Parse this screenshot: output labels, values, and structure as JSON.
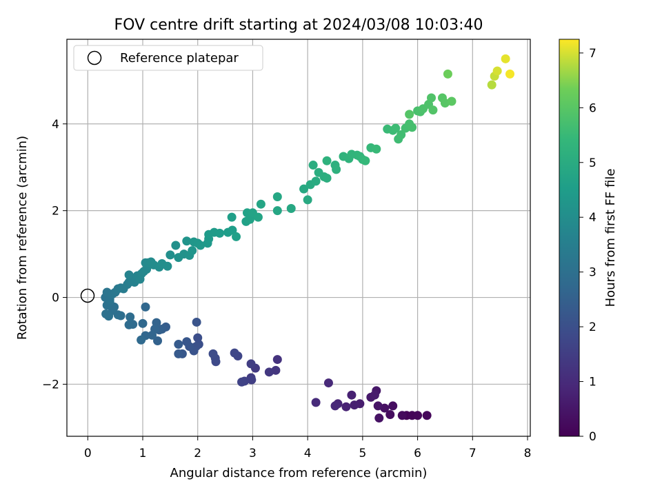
{
  "chart_data": {
    "type": "scatter",
    "title": "FOV centre drift starting at 2024/03/08 10:03:40",
    "xlabel": "Angular distance from reference (arcmin)",
    "ylabel": "Rotation from reference (arcmin)",
    "xlim": [
      -0.38,
      8.05
    ],
    "ylim": [
      -3.2,
      5.95
    ],
    "xticks": [
      0,
      1,
      2,
      3,
      4,
      5,
      6,
      7,
      8
    ],
    "xtick_labels": [
      "0",
      "1",
      "2",
      "3",
      "4",
      "5",
      "6",
      "7",
      "8"
    ],
    "yticks": [
      -2,
      0,
      2,
      4
    ],
    "ytick_labels": [
      "−2",
      "0",
      "2",
      "4"
    ],
    "grid": true,
    "legend": {
      "position": "top-left",
      "entries": [
        "Reference platepar"
      ]
    },
    "colorbar": {
      "label": "Hours from first FF file",
      "range": [
        0,
        7.25
      ],
      "ticks": [
        0,
        1,
        2,
        3,
        4,
        5,
        6,
        7
      ],
      "tick_labels": [
        "0",
        "1",
        "2",
        "3",
        "4",
        "5",
        "6",
        "7"
      ],
      "colormap": "viridis"
    },
    "reference_point": {
      "x": 0,
      "y": 0,
      "name": "Reference platepar"
    },
    "points": [
      [
        5.8,
        -2.72,
        0.05
      ],
      [
        5.9,
        -2.72,
        0.1
      ],
      [
        6.0,
        -2.72,
        0.12
      ],
      [
        6.17,
        -2.72,
        0.15
      ],
      [
        5.72,
        -2.72,
        0.2
      ],
      [
        5.5,
        -2.7,
        0.25
      ],
      [
        5.55,
        -2.5,
        0.3
      ],
      [
        5.4,
        -2.55,
        0.35
      ],
      [
        5.3,
        -2.78,
        0.4
      ],
      [
        5.28,
        -2.5,
        0.45
      ],
      [
        5.25,
        -2.15,
        0.5
      ],
      [
        5.15,
        -2.3,
        0.55
      ],
      [
        5.22,
        -2.25,
        0.6
      ],
      [
        4.95,
        -2.45,
        0.65
      ],
      [
        4.85,
        -2.48,
        0.7
      ],
      [
        4.8,
        -2.25,
        0.75
      ],
      [
        4.7,
        -2.52,
        0.8
      ],
      [
        4.55,
        -2.45,
        0.85
      ],
      [
        4.5,
        -2.5,
        0.9
      ],
      [
        4.38,
        -1.97,
        0.95
      ],
      [
        4.15,
        -2.42,
        1.0
      ],
      [
        3.45,
        -1.43,
        1.2
      ],
      [
        3.42,
        -1.68,
        1.3
      ],
      [
        3.3,
        -1.72,
        1.35
      ],
      [
        3.05,
        -1.63,
        1.4
      ],
      [
        2.97,
        -1.85,
        1.45
      ],
      [
        2.97,
        -1.53,
        1.5
      ],
      [
        2.98,
        -1.9,
        1.55
      ],
      [
        2.85,
        -1.93,
        1.6
      ],
      [
        2.8,
        -1.95,
        1.65
      ],
      [
        2.73,
        -1.35,
        1.7
      ],
      [
        2.67,
        -1.28,
        1.75
      ],
      [
        2.33,
        -1.48,
        1.8
      ],
      [
        2.32,
        -1.4,
        1.85
      ],
      [
        2.28,
        -1.3,
        1.9
      ],
      [
        2.0,
        -0.93,
        1.95
      ],
      [
        2.02,
        -1.08,
        2.0
      ],
      [
        1.97,
        -1.13,
        2.05
      ],
      [
        1.93,
        -1.23,
        2.1
      ],
      [
        1.98,
        -0.57,
        2.12
      ],
      [
        1.85,
        -1.13,
        2.15
      ],
      [
        1.8,
        -1.02,
        2.2
      ],
      [
        1.72,
        -1.3,
        2.25
      ],
      [
        1.65,
        -1.3,
        2.3
      ],
      [
        1.65,
        -1.08,
        2.35
      ],
      [
        1.42,
        -0.68,
        2.4
      ],
      [
        1.35,
        -0.73,
        2.45
      ],
      [
        1.3,
        -0.75,
        2.5
      ],
      [
        1.27,
        -1.0,
        2.55
      ],
      [
        1.25,
        -0.58,
        2.6
      ],
      [
        1.22,
        -0.73,
        2.63
      ],
      [
        1.17,
        -0.87,
        2.66
      ],
      [
        1.05,
        -0.88,
        2.7
      ],
      [
        1.05,
        -0.22,
        2.73
      ],
      [
        1.0,
        -0.6,
        2.76
      ],
      [
        0.97,
        -0.98,
        2.8
      ],
      [
        0.82,
        -0.62,
        2.83
      ],
      [
        0.75,
        -0.63,
        2.86
      ],
      [
        0.77,
        -0.45,
        2.89
      ],
      [
        0.6,
        -0.42,
        2.92
      ],
      [
        0.55,
        -0.4,
        2.95
      ],
      [
        0.45,
        -0.3,
        2.98
      ],
      [
        0.48,
        -0.22,
        3.0
      ],
      [
        0.38,
        -0.43,
        3.02
      ],
      [
        0.33,
        -0.38,
        3.04
      ],
      [
        0.35,
        -0.18,
        3.06
      ],
      [
        0.4,
        -0.1,
        3.08
      ],
      [
        0.32,
        0.0,
        3.1
      ],
      [
        0.4,
        -0.05,
        3.12
      ],
      [
        0.42,
        0.05,
        3.14
      ],
      [
        0.35,
        0.12,
        3.16
      ],
      [
        0.45,
        0.08,
        3.2
      ],
      [
        0.5,
        0.12,
        3.25
      ],
      [
        0.55,
        0.2,
        3.3
      ],
      [
        0.6,
        0.22,
        3.35
      ],
      [
        0.65,
        0.2,
        3.4
      ],
      [
        0.72,
        0.3,
        3.45
      ],
      [
        0.75,
        0.35,
        3.5
      ],
      [
        0.8,
        0.4,
        3.55
      ],
      [
        0.85,
        0.35,
        3.6
      ],
      [
        0.88,
        0.45,
        3.63
      ],
      [
        0.75,
        0.52,
        3.66
      ],
      [
        0.9,
        0.5,
        3.7
      ],
      [
        0.95,
        0.42,
        3.73
      ],
      [
        0.98,
        0.55,
        3.76
      ],
      [
        1.02,
        0.6,
        3.8
      ],
      [
        1.07,
        0.65,
        3.83
      ],
      [
        1.05,
        0.8,
        3.86
      ],
      [
        1.1,
        0.8,
        3.89
      ],
      [
        1.15,
        0.82,
        3.92
      ],
      [
        1.2,
        0.75,
        3.95
      ],
      [
        1.3,
        0.7,
        3.98
      ],
      [
        1.35,
        0.78,
        4.0
      ],
      [
        1.45,
        0.72,
        4.03
      ],
      [
        1.5,
        0.98,
        4.06
      ],
      [
        1.6,
        1.2,
        4.09
      ],
      [
        1.65,
        0.92,
        4.12
      ],
      [
        1.75,
        1.0,
        4.15
      ],
      [
        1.85,
        0.97,
        4.18
      ],
      [
        1.8,
        1.3,
        4.21
      ],
      [
        1.9,
        1.08,
        4.24
      ],
      [
        1.93,
        1.28,
        4.27
      ],
      [
        2.0,
        1.25,
        4.3
      ],
      [
        2.05,
        1.2,
        4.33
      ],
      [
        2.18,
        1.25,
        4.36
      ],
      [
        2.2,
        1.35,
        4.39
      ],
      [
        2.2,
        1.45,
        4.42
      ],
      [
        2.3,
        1.5,
        4.45
      ],
      [
        2.4,
        1.48,
        4.48
      ],
      [
        2.55,
        1.5,
        4.51
      ],
      [
        2.63,
        1.55,
        4.54
      ],
      [
        2.62,
        1.85,
        4.57
      ],
      [
        2.7,
        1.4,
        4.6
      ],
      [
        2.88,
        1.75,
        4.63
      ],
      [
        2.9,
        1.95,
        4.66
      ],
      [
        2.95,
        1.8,
        4.69
      ],
      [
        3.0,
        1.95,
        4.72
      ],
      [
        3.1,
        1.85,
        4.75
      ],
      [
        3.15,
        2.15,
        4.78
      ],
      [
        3.45,
        2.0,
        4.81
      ],
      [
        3.45,
        2.32,
        4.84
      ],
      [
        3.7,
        2.05,
        4.87
      ],
      [
        3.93,
        2.5,
        4.9
      ],
      [
        4.0,
        2.25,
        4.93
      ],
      [
        4.05,
        2.6,
        4.96
      ],
      [
        4.15,
        2.68,
        5.0
      ],
      [
        4.1,
        3.05,
        5.03
      ],
      [
        4.2,
        2.88,
        5.06
      ],
      [
        4.3,
        2.78,
        5.09
      ],
      [
        4.35,
        2.75,
        5.12
      ],
      [
        4.5,
        3.05,
        5.15
      ],
      [
        4.52,
        2.95,
        5.18
      ],
      [
        4.35,
        3.15,
        5.21
      ],
      [
        4.65,
        3.25,
        5.24
      ],
      [
        4.75,
        3.2,
        5.27
      ],
      [
        4.8,
        3.3,
        5.3
      ],
      [
        4.9,
        3.28,
        5.33
      ],
      [
        4.95,
        3.25,
        5.36
      ],
      [
        5.0,
        3.18,
        5.39
      ],
      [
        5.05,
        3.15,
        5.42
      ],
      [
        5.15,
        3.45,
        5.45
      ],
      [
        5.25,
        3.42,
        5.48
      ],
      [
        5.45,
        3.88,
        5.51
      ],
      [
        5.55,
        3.85,
        5.55
      ],
      [
        5.6,
        3.9,
        5.58
      ],
      [
        5.65,
        3.65,
        5.61
      ],
      [
        5.7,
        3.75,
        5.64
      ],
      [
        5.78,
        3.9,
        5.67
      ],
      [
        5.85,
        4.0,
        5.7
      ],
      [
        5.9,
        3.92,
        5.73
      ],
      [
        6.0,
        4.3,
        5.76
      ],
      [
        6.05,
        4.28,
        5.79
      ],
      [
        6.1,
        4.35,
        5.82
      ],
      [
        6.2,
        4.45,
        5.85
      ],
      [
        6.25,
        4.6,
        5.88
      ],
      [
        6.28,
        4.32,
        5.91
      ],
      [
        5.85,
        4.22,
        5.94
      ],
      [
        6.45,
        4.6,
        5.97
      ],
      [
        6.5,
        4.48,
        6.0
      ],
      [
        6.62,
        4.52,
        6.05
      ],
      [
        6.55,
        5.15,
        6.3
      ],
      [
        7.35,
        4.9,
        6.8
      ],
      [
        7.4,
        5.1,
        6.9
      ],
      [
        7.45,
        5.22,
        7.0
      ],
      [
        7.6,
        5.5,
        7.1
      ],
      [
        7.68,
        5.15,
        7.2
      ]
    ]
  }
}
